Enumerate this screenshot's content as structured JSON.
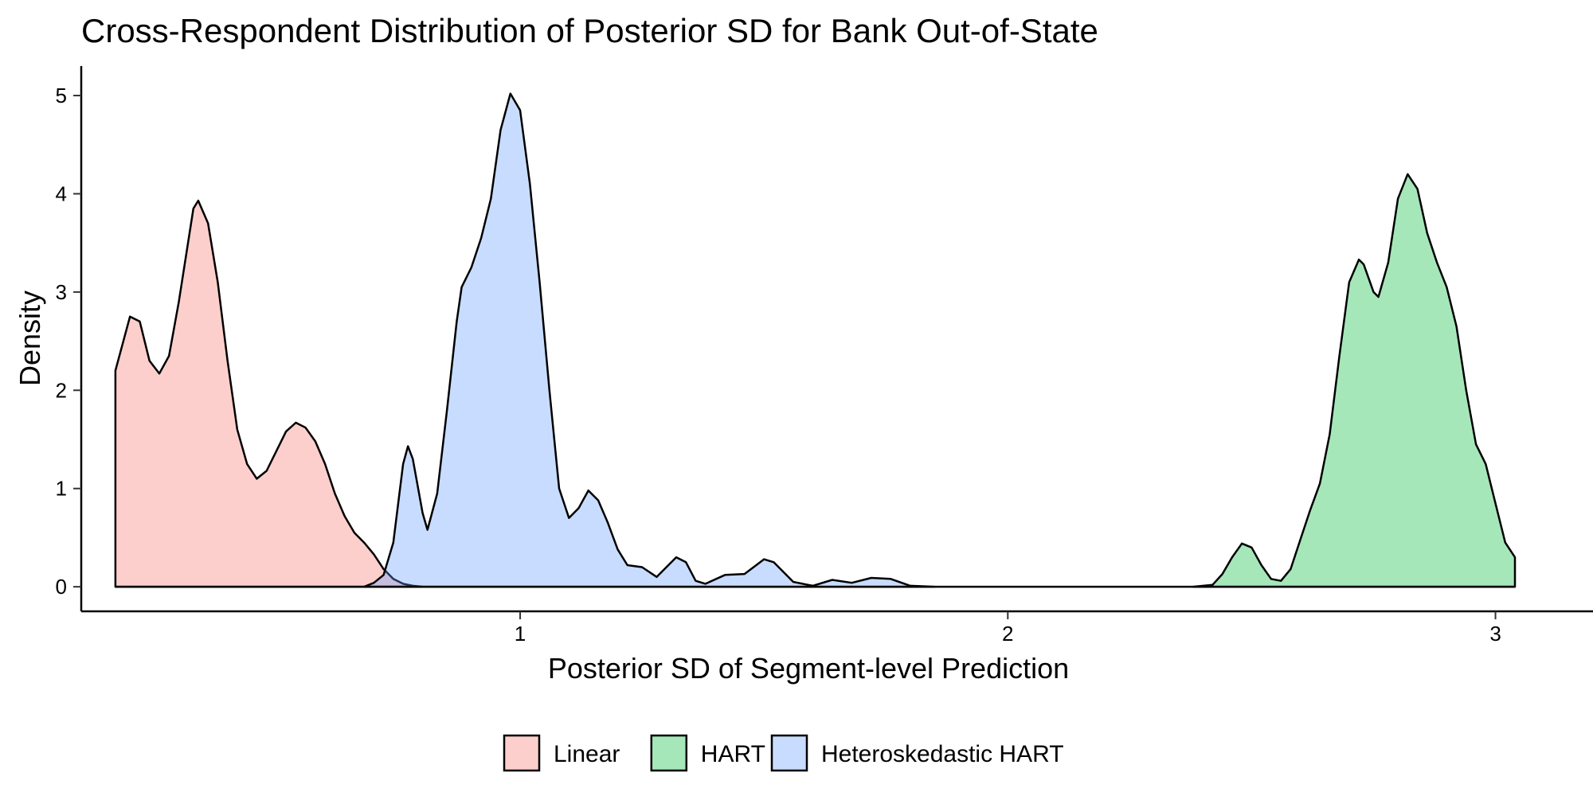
{
  "chart_data": {
    "type": "area",
    "title": "Cross-Respondent Distribution of Posterior SD for Bank Out-of-State",
    "xlabel": "Posterior SD of Segment-level Prediction",
    "ylabel": "Density",
    "xlim": [
      0.1,
      3.2
    ],
    "ylim": [
      -0.25,
      5.3
    ],
    "x_ticks": [
      1,
      2,
      3
    ],
    "y_ticks": [
      0,
      1,
      2,
      3,
      4,
      5
    ],
    "grid": false,
    "legend_position": "bottom",
    "series": [
      {
        "name": "Linear",
        "color": "#F8766D",
        "fill_opacity": 0.35,
        "points": [
          [
            0.17,
            2.2
          ],
          [
            0.2,
            2.75
          ],
          [
            0.22,
            2.7
          ],
          [
            0.24,
            2.3
          ],
          [
            0.26,
            2.17
          ],
          [
            0.28,
            2.35
          ],
          [
            0.3,
            2.9
          ],
          [
            0.33,
            3.85
          ],
          [
            0.34,
            3.93
          ],
          [
            0.36,
            3.7
          ],
          [
            0.38,
            3.1
          ],
          [
            0.4,
            2.3
          ],
          [
            0.42,
            1.6
          ],
          [
            0.44,
            1.25
          ],
          [
            0.46,
            1.1
          ],
          [
            0.48,
            1.18
          ],
          [
            0.5,
            1.38
          ],
          [
            0.52,
            1.58
          ],
          [
            0.54,
            1.67
          ],
          [
            0.56,
            1.62
          ],
          [
            0.58,
            1.48
          ],
          [
            0.6,
            1.25
          ],
          [
            0.62,
            0.95
          ],
          [
            0.64,
            0.72
          ],
          [
            0.66,
            0.55
          ],
          [
            0.68,
            0.45
          ],
          [
            0.7,
            0.33
          ],
          [
            0.72,
            0.18
          ],
          [
            0.74,
            0.08
          ],
          [
            0.76,
            0.03
          ],
          [
            0.78,
            0.01
          ],
          [
            0.8,
            0.0
          ]
        ]
      },
      {
        "name": "HART",
        "color": "#00BA38",
        "fill_opacity": 0.35,
        "points": [
          [
            2.38,
            0.0
          ],
          [
            2.42,
            0.02
          ],
          [
            2.44,
            0.13
          ],
          [
            2.46,
            0.3
          ],
          [
            2.48,
            0.44
          ],
          [
            2.5,
            0.4
          ],
          [
            2.52,
            0.22
          ],
          [
            2.54,
            0.08
          ],
          [
            2.56,
            0.06
          ],
          [
            2.58,
            0.18
          ],
          [
            2.6,
            0.48
          ],
          [
            2.62,
            0.78
          ],
          [
            2.64,
            1.05
          ],
          [
            2.66,
            1.55
          ],
          [
            2.68,
            2.35
          ],
          [
            2.7,
            3.1
          ],
          [
            2.72,
            3.33
          ],
          [
            2.73,
            3.28
          ],
          [
            2.75,
            3.0
          ],
          [
            2.76,
            2.95
          ],
          [
            2.78,
            3.3
          ],
          [
            2.8,
            3.95
          ],
          [
            2.82,
            4.2
          ],
          [
            2.84,
            4.05
          ],
          [
            2.86,
            3.6
          ],
          [
            2.88,
            3.3
          ],
          [
            2.9,
            3.05
          ],
          [
            2.92,
            2.65
          ],
          [
            2.94,
            2.0
          ],
          [
            2.96,
            1.45
          ],
          [
            2.98,
            1.25
          ],
          [
            3.0,
            0.85
          ],
          [
            3.02,
            0.45
          ],
          [
            3.04,
            0.3
          ]
        ]
      },
      {
        "name": "Heteroskedastic HART",
        "color": "#619CFF",
        "fill_opacity": 0.35,
        "points": [
          [
            0.68,
            0.0
          ],
          [
            0.7,
            0.04
          ],
          [
            0.72,
            0.12
          ],
          [
            0.74,
            0.45
          ],
          [
            0.76,
            1.25
          ],
          [
            0.77,
            1.43
          ],
          [
            0.78,
            1.3
          ],
          [
            0.8,
            0.75
          ],
          [
            0.81,
            0.58
          ],
          [
            0.83,
            0.95
          ],
          [
            0.85,
            1.8
          ],
          [
            0.87,
            2.7
          ],
          [
            0.88,
            3.05
          ],
          [
            0.9,
            3.25
          ],
          [
            0.92,
            3.55
          ],
          [
            0.94,
            3.95
          ],
          [
            0.96,
            4.65
          ],
          [
            0.98,
            5.02
          ],
          [
            1.0,
            4.85
          ],
          [
            1.02,
            4.1
          ],
          [
            1.04,
            3.1
          ],
          [
            1.06,
            2.0
          ],
          [
            1.08,
            1.0
          ],
          [
            1.1,
            0.7
          ],
          [
            1.12,
            0.8
          ],
          [
            1.14,
            0.98
          ],
          [
            1.16,
            0.88
          ],
          [
            1.18,
            0.65
          ],
          [
            1.2,
            0.38
          ],
          [
            1.22,
            0.22
          ],
          [
            1.25,
            0.2
          ],
          [
            1.28,
            0.1
          ],
          [
            1.32,
            0.3
          ],
          [
            1.34,
            0.25
          ],
          [
            1.36,
            0.06
          ],
          [
            1.38,
            0.03
          ],
          [
            1.42,
            0.12
          ],
          [
            1.46,
            0.13
          ],
          [
            1.5,
            0.28
          ],
          [
            1.52,
            0.25
          ],
          [
            1.56,
            0.05
          ],
          [
            1.6,
            0.01
          ],
          [
            1.64,
            0.07
          ],
          [
            1.68,
            0.04
          ],
          [
            1.72,
            0.09
          ],
          [
            1.76,
            0.08
          ],
          [
            1.8,
            0.01
          ],
          [
            1.85,
            0.0
          ]
        ]
      }
    ]
  }
}
